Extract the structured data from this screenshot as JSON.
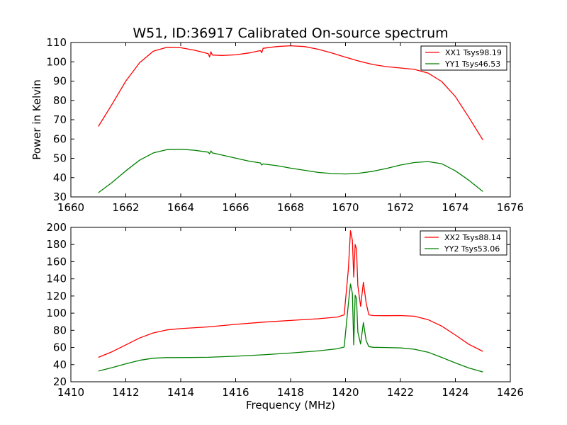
{
  "chart_data": [
    {
      "type": "line",
      "title": "W51, ID:36917 Calibrated On-source spectrum",
      "xlabel": "",
      "ylabel": "Power in Kelvin",
      "xlim": [
        1660,
        1676
      ],
      "ylim": [
        30,
        110
      ],
      "xticks": [
        1660,
        1662,
        1664,
        1666,
        1668,
        1670,
        1672,
        1674,
        1676
      ],
      "yticks": [
        30,
        40,
        50,
        60,
        70,
        80,
        90,
        100,
        110
      ],
      "legend_position": "top-right",
      "series": [
        {
          "name": "XX1 Tsys98.19",
          "color": "#ff0000",
          "points": [
            [
              1661.0,
              66.5
            ],
            [
              1661.5,
              78
            ],
            [
              1662.0,
              90
            ],
            [
              1662.5,
              99.5
            ],
            [
              1663.0,
              105.5
            ],
            [
              1663.5,
              107.5
            ],
            [
              1664.0,
              107.3
            ],
            [
              1664.5,
              106
            ],
            [
              1665.0,
              104.2
            ],
            [
              1665.05,
              102.5
            ],
            [
              1665.1,
              105.2
            ],
            [
              1665.15,
              103.5
            ],
            [
              1665.5,
              103.3
            ],
            [
              1666.0,
              103.6
            ],
            [
              1666.5,
              104.6
            ],
            [
              1666.9,
              105.8
            ],
            [
              1666.95,
              104.7
            ],
            [
              1667.0,
              107
            ],
            [
              1667.5,
              107.9
            ],
            [
              1668.0,
              108.3
            ],
            [
              1668.5,
              107.9
            ],
            [
              1669.0,
              106.5
            ],
            [
              1669.5,
              104.6
            ],
            [
              1670.0,
              102.4
            ],
            [
              1670.5,
              100.3
            ],
            [
              1671.0,
              98.6
            ],
            [
              1671.5,
              97.5
            ],
            [
              1672.0,
              96.8
            ],
            [
              1672.5,
              96.1
            ],
            [
              1673.0,
              94.2
            ],
            [
              1673.5,
              89.8
            ],
            [
              1674.0,
              82
            ],
            [
              1674.5,
              71
            ],
            [
              1675.0,
              59.5
            ]
          ]
        },
        {
          "name": "YY1 Tsys46.53",
          "color": "#008000",
          "points": [
            [
              1661.0,
              32.2
            ],
            [
              1661.5,
              37.5
            ],
            [
              1662.0,
              43.5
            ],
            [
              1662.5,
              49
            ],
            [
              1663.0,
              52.8
            ],
            [
              1663.5,
              54.5
            ],
            [
              1664.0,
              54.7
            ],
            [
              1664.5,
              54.2
            ],
            [
              1665.0,
              53.2
            ],
            [
              1665.05,
              52.3
            ],
            [
              1665.1,
              53.8
            ],
            [
              1665.15,
              52.8
            ],
            [
              1665.5,
              51.7
            ],
            [
              1666.0,
              50.1
            ],
            [
              1666.5,
              48.5
            ],
            [
              1666.9,
              47.6
            ],
            [
              1666.95,
              46.5
            ],
            [
              1667.0,
              47.1
            ],
            [
              1667.5,
              46.2
            ],
            [
              1668.0,
              44.9
            ],
            [
              1668.5,
              43.8
            ],
            [
              1669.0,
              42.7
            ],
            [
              1669.5,
              42.1
            ],
            [
              1670.0,
              41.9
            ],
            [
              1670.5,
              42.3
            ],
            [
              1671.0,
              43.3
            ],
            [
              1671.5,
              44.8
            ],
            [
              1672.0,
              46.5
            ],
            [
              1672.5,
              47.8
            ],
            [
              1673.0,
              48.3
            ],
            [
              1673.5,
              47.2
            ],
            [
              1674.0,
              43.5
            ],
            [
              1674.5,
              38.5
            ],
            [
              1675.0,
              32.8
            ]
          ]
        }
      ]
    },
    {
      "type": "line",
      "title": "",
      "xlabel": "Frequency (MHz)",
      "ylabel": "",
      "xlim": [
        1410,
        1426
      ],
      "ylim": [
        20,
        200
      ],
      "xticks": [
        1410,
        1412,
        1414,
        1416,
        1418,
        1420,
        1422,
        1424,
        1426
      ],
      "yticks": [
        20,
        40,
        60,
        80,
        100,
        120,
        140,
        160,
        180,
        200
      ],
      "legend_position": "top-right",
      "series": [
        {
          "name": "XX2 Tsys88.14",
          "color": "#ff0000",
          "points": [
            [
              1411.0,
              48.5
            ],
            [
              1411.5,
              55
            ],
            [
              1412.0,
              63
            ],
            [
              1412.5,
              71
            ],
            [
              1413.0,
              77
            ],
            [
              1413.5,
              80.5
            ],
            [
              1414.0,
              82
            ],
            [
              1415.0,
              84
            ],
            [
              1416.0,
              87
            ],
            [
              1417.0,
              89.5
            ],
            [
              1418.0,
              91.5
            ],
            [
              1419.0,
              93.5
            ],
            [
              1419.7,
              95.5
            ],
            [
              1419.95,
              98
            ],
            [
              1420.1,
              150
            ],
            [
              1420.18,
              196
            ],
            [
              1420.25,
              185
            ],
            [
              1420.3,
              142
            ],
            [
              1420.35,
              180
            ],
            [
              1420.4,
              175
            ],
            [
              1420.45,
              132
            ],
            [
              1420.55,
              108
            ],
            [
              1420.65,
              136
            ],
            [
              1420.75,
              112
            ],
            [
              1420.85,
              98
            ],
            [
              1421.0,
              97.2
            ],
            [
              1421.5,
              97
            ],
            [
              1422.0,
              97.2
            ],
            [
              1422.5,
              96.5
            ],
            [
              1423.0,
              92.5
            ],
            [
              1423.5,
              85
            ],
            [
              1424.0,
              74.5
            ],
            [
              1424.5,
              63.5
            ],
            [
              1425.0,
              55.5
            ]
          ]
        },
        {
          "name": "YY2 Tsys53.06",
          "color": "#008000",
          "points": [
            [
              1411.0,
              32.5
            ],
            [
              1411.5,
              36.5
            ],
            [
              1412.0,
              41
            ],
            [
              1412.5,
              45
            ],
            [
              1413.0,
              47.5
            ],
            [
              1413.5,
              48.2
            ],
            [
              1414.0,
              48.2
            ],
            [
              1415.0,
              48.6
            ],
            [
              1416.0,
              49.8
            ],
            [
              1417.0,
              51.5
            ],
            [
              1418.0,
              53.5
            ],
            [
              1419.0,
              56
            ],
            [
              1419.7,
              58.5
            ],
            [
              1419.95,
              60.5
            ],
            [
              1420.1,
              110
            ],
            [
              1420.18,
              134
            ],
            [
              1420.25,
              123
            ],
            [
              1420.3,
              63
            ],
            [
              1420.35,
              121
            ],
            [
              1420.4,
              117
            ],
            [
              1420.45,
              78
            ],
            [
              1420.55,
              64
            ],
            [
              1420.65,
              89
            ],
            [
              1420.75,
              68
            ],
            [
              1420.85,
              61
            ],
            [
              1421.0,
              60.2
            ],
            [
              1421.5,
              60
            ],
            [
              1422.0,
              59.5
            ],
            [
              1422.5,
              58
            ],
            [
              1423.0,
              54.5
            ],
            [
              1423.5,
              48.5
            ],
            [
              1424.0,
              42
            ],
            [
              1424.5,
              36
            ],
            [
              1425.0,
              31.5
            ]
          ]
        }
      ]
    }
  ]
}
